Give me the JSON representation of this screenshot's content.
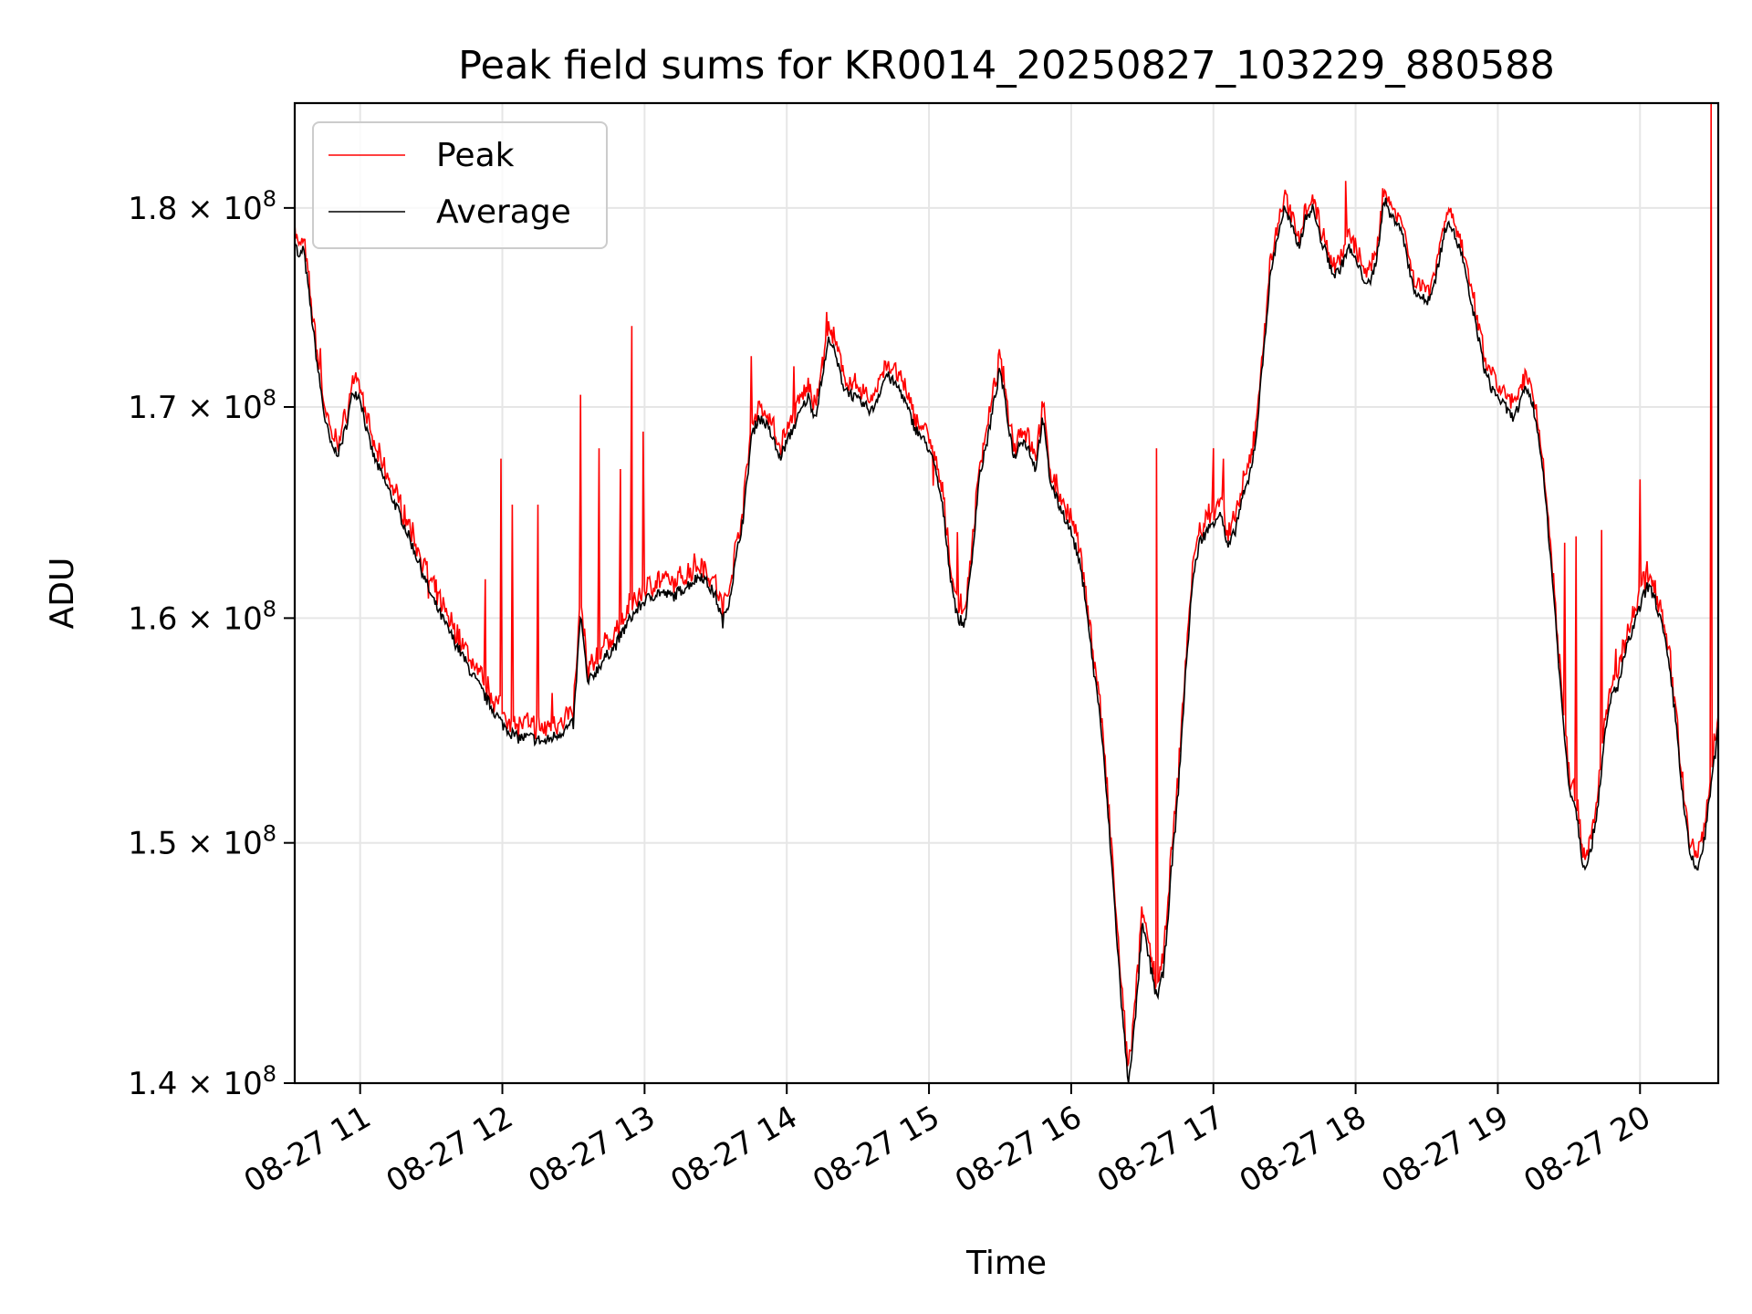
{
  "chart_data": {
    "type": "line",
    "title": "Peak field sums for KR0014_20250827_103229_880588",
    "xlabel": "Time",
    "ylabel": "ADU",
    "x_unit": "hours",
    "xlim": [
      10.54,
      20.55
    ],
    "ylim": [
      140000000,
      185500000
    ],
    "yscale": "log",
    "grid": true,
    "legend": "upper-left",
    "x_ticks": [
      {
        "value": 11,
        "label": "08-27 11"
      },
      {
        "value": 12,
        "label": "08-27 12"
      },
      {
        "value": 13,
        "label": "08-27 13"
      },
      {
        "value": 14,
        "label": "08-27 14"
      },
      {
        "value": 15,
        "label": "08-27 15"
      },
      {
        "value": 16,
        "label": "08-27 16"
      },
      {
        "value": 17,
        "label": "08-27 17"
      },
      {
        "value": 18,
        "label": "08-27 18"
      },
      {
        "value": 19,
        "label": "08-27 19"
      },
      {
        "value": 20,
        "label": "08-27 20"
      }
    ],
    "y_ticks": [
      {
        "value": 140000000,
        "mantissa": "1.4",
        "exp": "8"
      },
      {
        "value": 150000000,
        "mantissa": "1.5",
        "exp": "8"
      },
      {
        "value": 160000000,
        "mantissa": "1.6",
        "exp": "8"
      },
      {
        "value": 170000000,
        "mantissa": "1.7",
        "exp": "8"
      },
      {
        "value": 180000000,
        "mantissa": "1.8",
        "exp": "8"
      }
    ],
    "times_sign": "×",
    "tick_base": "10",
    "series": [
      {
        "name": "Peak",
        "color": "#ff0000",
        "spikes": [
          [
            10.72,
            172.9
          ],
          [
            11.2,
            166.5
          ],
          [
            11.48,
            160.9
          ],
          [
            11.88,
            161.8
          ],
          [
            11.99,
            167.5
          ],
          [
            12.07,
            165.3
          ],
          [
            12.25,
            165.3
          ],
          [
            12.35,
            156.6
          ],
          [
            12.55,
            170.6
          ],
          [
            12.68,
            168.0
          ],
          [
            12.83,
            167.0
          ],
          [
            12.91,
            174.0
          ],
          [
            12.99,
            168.8
          ],
          [
            13.35,
            163.0
          ],
          [
            13.75,
            172.5
          ],
          [
            14.05,
            172.0
          ],
          [
            14.28,
            174.7
          ],
          [
            15.03,
            166.2
          ],
          [
            15.2,
            164.0
          ],
          [
            16.6,
            168.0
          ],
          [
            17.0,
            168.0
          ],
          [
            17.07,
            167.5
          ],
          [
            17.93,
            181.4
          ],
          [
            19.47,
            163.5
          ],
          [
            19.55,
            163.8
          ],
          [
            19.73,
            164.1
          ],
          [
            19.83,
            158.6
          ],
          [
            20.0,
            166.5
          ],
          [
            20.5,
            185.5
          ]
        ]
      },
      {
        "name": "Average",
        "color": "#000000",
        "points": [
          [
            10.54,
            178.5
          ],
          [
            10.57,
            177.3
          ],
          [
            10.6,
            178.0
          ],
          [
            10.65,
            175.0
          ],
          [
            10.7,
            172.0
          ],
          [
            10.75,
            169.5
          ],
          [
            10.8,
            168.0
          ],
          [
            10.85,
            167.8
          ],
          [
            10.9,
            169.0
          ],
          [
            10.95,
            170.8
          ],
          [
            11.0,
            170.5
          ],
          [
            11.05,
            168.7
          ],
          [
            11.1,
            167.5
          ],
          [
            11.2,
            166.0
          ],
          [
            11.3,
            164.5
          ],
          [
            11.4,
            162.8
          ],
          [
            11.5,
            161.0
          ],
          [
            11.6,
            159.7
          ],
          [
            11.7,
            158.5
          ],
          [
            11.8,
            157.3
          ],
          [
            11.9,
            156.2
          ],
          [
            12.0,
            155.2
          ],
          [
            12.1,
            154.6
          ],
          [
            12.2,
            154.6
          ],
          [
            12.3,
            154.4
          ],
          [
            12.4,
            154.8
          ],
          [
            12.45,
            155.0
          ],
          [
            12.5,
            155.2
          ],
          [
            12.55,
            160.2
          ],
          [
            12.6,
            157.0
          ],
          [
            12.7,
            158.0
          ],
          [
            12.8,
            158.8
          ],
          [
            12.9,
            160.0
          ],
          [
            13.0,
            160.8
          ],
          [
            13.1,
            161.2
          ],
          [
            13.2,
            161.0
          ],
          [
            13.3,
            161.5
          ],
          [
            13.4,
            162.0
          ],
          [
            13.5,
            161.0
          ],
          [
            13.55,
            159.8
          ],
          [
            13.6,
            161.0
          ],
          [
            13.65,
            163.0
          ],
          [
            13.7,
            165.0
          ],
          [
            13.75,
            168.5
          ],
          [
            13.8,
            169.5
          ],
          [
            13.85,
            169.2
          ],
          [
            13.9,
            168.5
          ],
          [
            13.95,
            167.5
          ],
          [
            14.0,
            168.3
          ],
          [
            14.1,
            169.8
          ],
          [
            14.15,
            170.5
          ],
          [
            14.2,
            169.5
          ],
          [
            14.3,
            173.5
          ],
          [
            14.35,
            172.3
          ],
          [
            14.4,
            171.0
          ],
          [
            14.5,
            170.3
          ],
          [
            14.6,
            169.8
          ],
          [
            14.7,
            171.6
          ],
          [
            14.8,
            170.8
          ],
          [
            14.9,
            169.0
          ],
          [
            15.0,
            168.0
          ],
          [
            15.05,
            166.8
          ],
          [
            15.1,
            165.0
          ],
          [
            15.15,
            162.0
          ],
          [
            15.2,
            160.0
          ],
          [
            15.25,
            159.7
          ],
          [
            15.3,
            162.5
          ],
          [
            15.35,
            166.5
          ],
          [
            15.4,
            168.0
          ],
          [
            15.5,
            171.9
          ],
          [
            15.55,
            169.5
          ],
          [
            15.6,
            167.5
          ],
          [
            15.65,
            168.5
          ],
          [
            15.7,
            168.0
          ],
          [
            15.75,
            167.0
          ],
          [
            15.8,
            169.5
          ],
          [
            15.85,
            166.5
          ],
          [
            15.9,
            165.5
          ],
          [
            15.95,
            164.8
          ],
          [
            16.0,
            164.0
          ],
          [
            16.05,
            162.8
          ],
          [
            16.1,
            161.0
          ],
          [
            16.15,
            158.0
          ],
          [
            16.2,
            155.8
          ],
          [
            16.25,
            152.0
          ],
          [
            16.3,
            147.8
          ],
          [
            16.35,
            143.5
          ],
          [
            16.4,
            140.0
          ],
          [
            16.45,
            142.5
          ],
          [
            16.5,
            146.5
          ],
          [
            16.55,
            145.0
          ],
          [
            16.6,
            143.5
          ],
          [
            16.65,
            144.5
          ],
          [
            16.7,
            148.5
          ],
          [
            16.75,
            152.0
          ],
          [
            16.8,
            157.0
          ],
          [
            16.85,
            161.5
          ],
          [
            16.9,
            163.5
          ],
          [
            16.95,
            164.0
          ],
          [
            17.0,
            164.5
          ],
          [
            17.05,
            165.0
          ],
          [
            17.1,
            163.2
          ],
          [
            17.15,
            164.0
          ],
          [
            17.2,
            165.5
          ],
          [
            17.25,
            166.5
          ],
          [
            17.3,
            168.5
          ],
          [
            17.35,
            172.5
          ],
          [
            17.4,
            176.5
          ],
          [
            17.45,
            178.5
          ],
          [
            17.5,
            180.0
          ],
          [
            17.55,
            179.0
          ],
          [
            17.6,
            178.0
          ],
          [
            17.65,
            179.5
          ],
          [
            17.7,
            180.0
          ],
          [
            17.75,
            178.5
          ],
          [
            17.8,
            177.5
          ],
          [
            17.85,
            176.5
          ],
          [
            17.9,
            177.0
          ],
          [
            17.95,
            178.0
          ],
          [
            18.0,
            177.3
          ],
          [
            18.05,
            176.5
          ],
          [
            18.1,
            176.0
          ],
          [
            18.15,
            177.5
          ],
          [
            18.2,
            180.5
          ],
          [
            18.25,
            179.5
          ],
          [
            18.3,
            179.3
          ],
          [
            18.35,
            178.0
          ],
          [
            18.4,
            176.0
          ],
          [
            18.45,
            175.5
          ],
          [
            18.5,
            175.2
          ],
          [
            18.55,
            176.0
          ],
          [
            18.6,
            177.8
          ],
          [
            18.65,
            179.5
          ],
          [
            18.7,
            178.5
          ],
          [
            18.75,
            177.5
          ],
          [
            18.8,
            175.5
          ],
          [
            18.85,
            174.0
          ],
          [
            18.9,
            172.0
          ],
          [
            18.95,
            171.0
          ],
          [
            19.0,
            170.5
          ],
          [
            19.05,
            170.0
          ],
          [
            19.1,
            169.5
          ],
          [
            19.15,
            170.0
          ],
          [
            19.2,
            171.0
          ],
          [
            19.25,
            170.0
          ],
          [
            19.3,
            168.0
          ],
          [
            19.35,
            164.5
          ],
          [
            19.4,
            160.5
          ],
          [
            19.45,
            156.0
          ],
          [
            19.5,
            152.5
          ],
          [
            19.55,
            151.5
          ],
          [
            19.6,
            149.0
          ],
          [
            19.65,
            149.5
          ],
          [
            19.7,
            151.5
          ],
          [
            19.75,
            154.5
          ],
          [
            19.8,
            156.5
          ],
          [
            19.85,
            157.0
          ],
          [
            19.9,
            158.5
          ],
          [
            19.95,
            159.5
          ],
          [
            20.0,
            160.5
          ],
          [
            20.05,
            161.5
          ],
          [
            20.1,
            161.0
          ],
          [
            20.15,
            159.8
          ],
          [
            20.2,
            158.0
          ],
          [
            20.25,
            155.5
          ],
          [
            20.3,
            152.0
          ],
          [
            20.35,
            149.5
          ],
          [
            20.4,
            148.8
          ],
          [
            20.45,
            150.0
          ],
          [
            20.5,
            152.5
          ],
          [
            20.55,
            155.0
          ]
        ]
      }
    ]
  }
}
